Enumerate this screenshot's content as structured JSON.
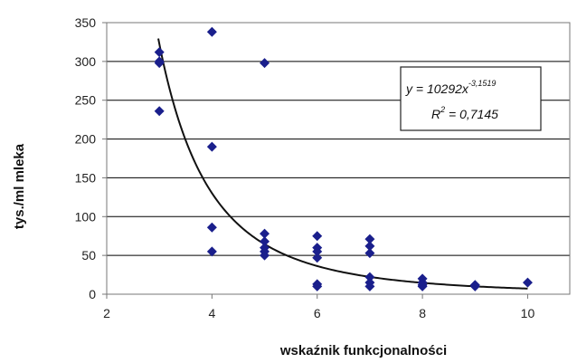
{
  "chart_data": {
    "type": "scatter",
    "title": "",
    "xlabel": "wskaźnik funkcjonalności",
    "ylabel": "tys./ml mleka",
    "xlim": [
      2,
      10.8
    ],
    "ylim": [
      0,
      350
    ],
    "xticks": [
      2,
      4,
      6,
      8,
      10
    ],
    "yticks": [
      0,
      50,
      100,
      150,
      200,
      250,
      300,
      350
    ],
    "grid": "horizontal",
    "marker": "diamond",
    "point_color": "#1a1f8c",
    "trendline": {
      "type": "power",
      "a": 10292,
      "b": -3.1519,
      "equation_text": "y = 10292x",
      "equation_exponent": "-3,1519",
      "r2_text": "R",
      "r2_value_text": " = 0,7145",
      "r2_sup": "2",
      "box_position": "upper-right"
    },
    "series": [
      {
        "x": [
          3,
          3,
          3,
          3,
          4,
          4,
          4,
          4,
          5,
          5,
          5,
          5,
          5,
          5,
          6,
          6,
          6,
          6,
          6,
          6,
          7,
          7,
          7,
          7,
          7,
          7,
          8,
          8,
          8,
          8,
          9,
          9,
          10
        ],
        "y": [
          312,
          298,
          300,
          236,
          338,
          190,
          86,
          55,
          298,
          78,
          68,
          60,
          55,
          50,
          75,
          60,
          55,
          47,
          13,
          10,
          71,
          62,
          53,
          22,
          15,
          10,
          20,
          15,
          12,
          10,
          12,
          10,
          15
        ]
      }
    ]
  }
}
